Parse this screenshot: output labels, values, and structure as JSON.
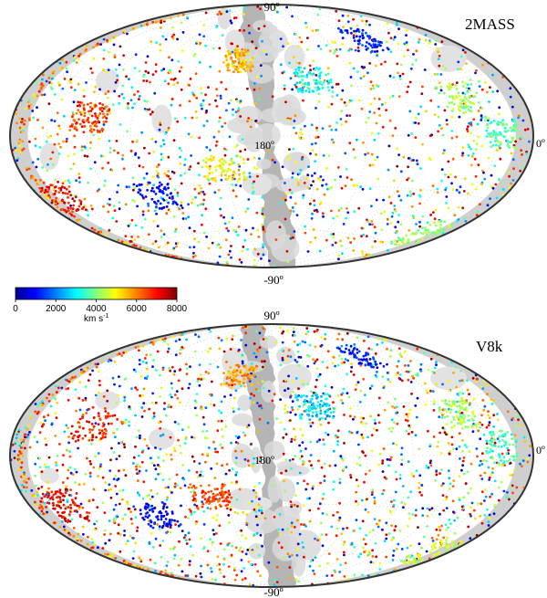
{
  "figure": {
    "panels": [
      {
        "name": "2MASS",
        "lat_top_label": "90º",
        "lat_bottom_label": "-90º",
        "lon_center_label": "180º",
        "lon_edge_label": "0º"
      },
      {
        "name": "V8k",
        "lat_top_label": "90º",
        "lat_bottom_label": "-90º",
        "lon_center_label": "180º",
        "lon_edge_label": "0º"
      }
    ],
    "colorbar": {
      "ticks": [
        "0",
        "2000",
        "4000",
        "6000",
        "8000"
      ],
      "unit": "km s",
      "unit_sup": "-1",
      "colors": [
        "#00008f",
        "#0000ff",
        "#00ffff",
        "#ffff00",
        "#ff0000",
        "#800000"
      ]
    }
  },
  "chart_data": [
    {
      "type": "scatter",
      "projection": "Aitoff/Hammer all-sky (Galactic)",
      "title": "2MASS",
      "color_range": [
        0,
        8000
      ],
      "color_unit": "km s^-1",
      "clusters": [
        {
          "l_deg": 152,
          "b_deg": 48,
          "v": 5500
        },
        {
          "l_deg": 282,
          "b_deg": 58,
          "v": 1200
        },
        {
          "l_deg": 310,
          "b_deg": 20,
          "v": 4300
        },
        {
          "l_deg": 335,
          "b_deg": 2,
          "v": 3700
        },
        {
          "l_deg": 150,
          "b_deg": -20,
          "v": 5000
        },
        {
          "l_deg": 95,
          "b_deg": -35,
          "v": 1000
        },
        {
          "l_deg": 340,
          "b_deg": -52,
          "v": 4200
        },
        {
          "l_deg": 20,
          "b_deg": -30,
          "v": 7000
        },
        {
          "l_deg": 210,
          "b_deg": 35,
          "v": 3100
        },
        {
          "l_deg": 60,
          "b_deg": 10,
          "v": 6500
        }
      ]
    },
    {
      "type": "scatter",
      "projection": "Aitoff/Hammer all-sky (Galactic)",
      "title": "V8k",
      "color_range": [
        0,
        8000
      ],
      "color_unit": "km s^-1",
      "clusters": [
        {
          "l_deg": 152,
          "b_deg": 50,
          "v": 5800
        },
        {
          "l_deg": 282,
          "b_deg": 60,
          "v": 1100
        },
        {
          "l_deg": 310,
          "b_deg": 22,
          "v": 4300
        },
        {
          "l_deg": 335,
          "b_deg": 4,
          "v": 3500
        },
        {
          "l_deg": 140,
          "b_deg": -25,
          "v": 6500
        },
        {
          "l_deg": 95,
          "b_deg": -35,
          "v": 900
        },
        {
          "l_deg": 345,
          "b_deg": -50,
          "v": 4500
        },
        {
          "l_deg": 30,
          "b_deg": -25,
          "v": 7200
        },
        {
          "l_deg": 210,
          "b_deg": 30,
          "v": 2800
        },
        {
          "l_deg": 60,
          "b_deg": 15,
          "v": 6800
        }
      ]
    }
  ]
}
